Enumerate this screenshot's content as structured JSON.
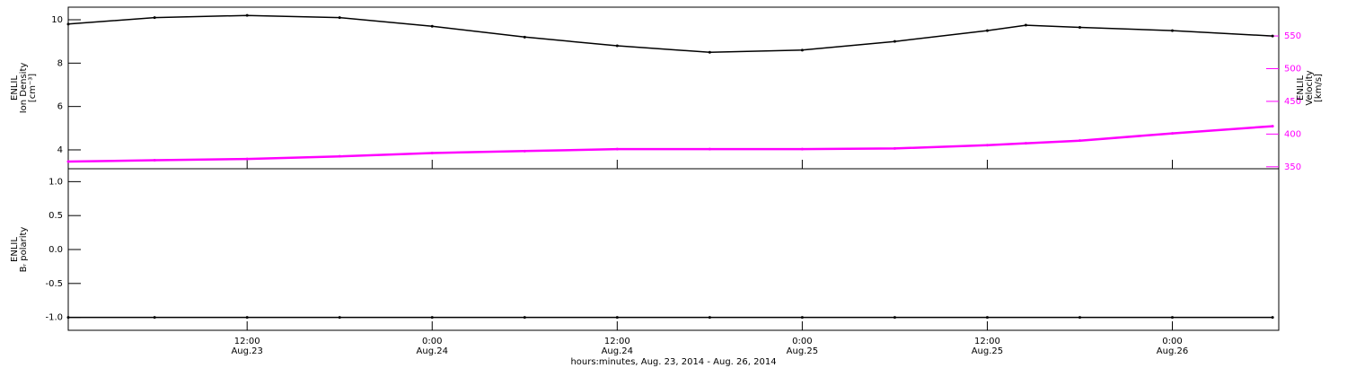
{
  "chart_data": [
    {
      "type": "line",
      "ylabel": [
        "ENLIL",
        "Ion Density",
        "[cm⁻³]"
      ],
      "y2label": [
        "ENLIL",
        "Velocity",
        "[km/s]"
      ],
      "x": [
        0.4,
        6,
        12,
        18,
        24,
        30,
        36,
        42,
        48,
        54,
        60,
        62.5,
        66,
        72,
        78.5
      ],
      "xlim": [
        0.4,
        78.9
      ],
      "series": [
        {
          "color": "#000000",
          "values": [
            9.8,
            10.1,
            10.2,
            10.1,
            9.7,
            9.2,
            8.8,
            8.5,
            8.6,
            9.0,
            9.5,
            9.75,
            9.65,
            9.5,
            9.25
          ]
        },
        {
          "color": "#ff00ff",
          "axis": "y2",
          "values": [
            358,
            360,
            362,
            366,
            371,
            374,
            377,
            377,
            377,
            378,
            383,
            386,
            390,
            401,
            412
          ]
        }
      ],
      "ylim": [
        3.13,
        10.58
      ],
      "yticks": [
        4,
        6,
        8,
        10
      ],
      "y2lim": [
        347,
        594
      ],
      "y2ticks": [
        350,
        400,
        450,
        500,
        550
      ]
    },
    {
      "type": "line",
      "ylabel": [
        "ENLIL",
        "Bᵣ polarity"
      ],
      "xlabel": "hours:minutes, Aug. 23, 2014 - Aug. 26, 2014",
      "x": [
        0.4,
        6,
        12,
        18,
        24,
        30,
        36,
        42,
        48,
        54,
        60,
        66,
        72,
        78.5
      ],
      "xlim": [
        0.4,
        78.9
      ],
      "xticks": [
        {
          "value": 12,
          "label": "12:00\nAug.23"
        },
        {
          "value": 24,
          "label": "0:00\nAug.24"
        },
        {
          "value": 36,
          "label": "12:00\nAug.24"
        },
        {
          "value": 48,
          "label": "0:00\nAug.25"
        },
        {
          "value": 60,
          "label": "12:00\nAug.25"
        },
        {
          "value": 72,
          "label": "0:00\nAug.26"
        }
      ],
      "series": [
        {
          "color": "#000000",
          "values": [
            -1,
            -1,
            -1,
            -1,
            -1,
            -1,
            -1,
            -1,
            -1,
            -1,
            -1,
            -1,
            -1,
            -1
          ]
        }
      ],
      "ylim": [
        -1.19,
        1.19
      ],
      "yticks": [
        {
          "value": 1,
          "label": "1.0"
        },
        0.5,
        {
          "value": 0,
          "label": "0.0"
        },
        -0.5,
        {
          "value": -1,
          "label": "-1.0"
        }
      ]
    }
  ]
}
